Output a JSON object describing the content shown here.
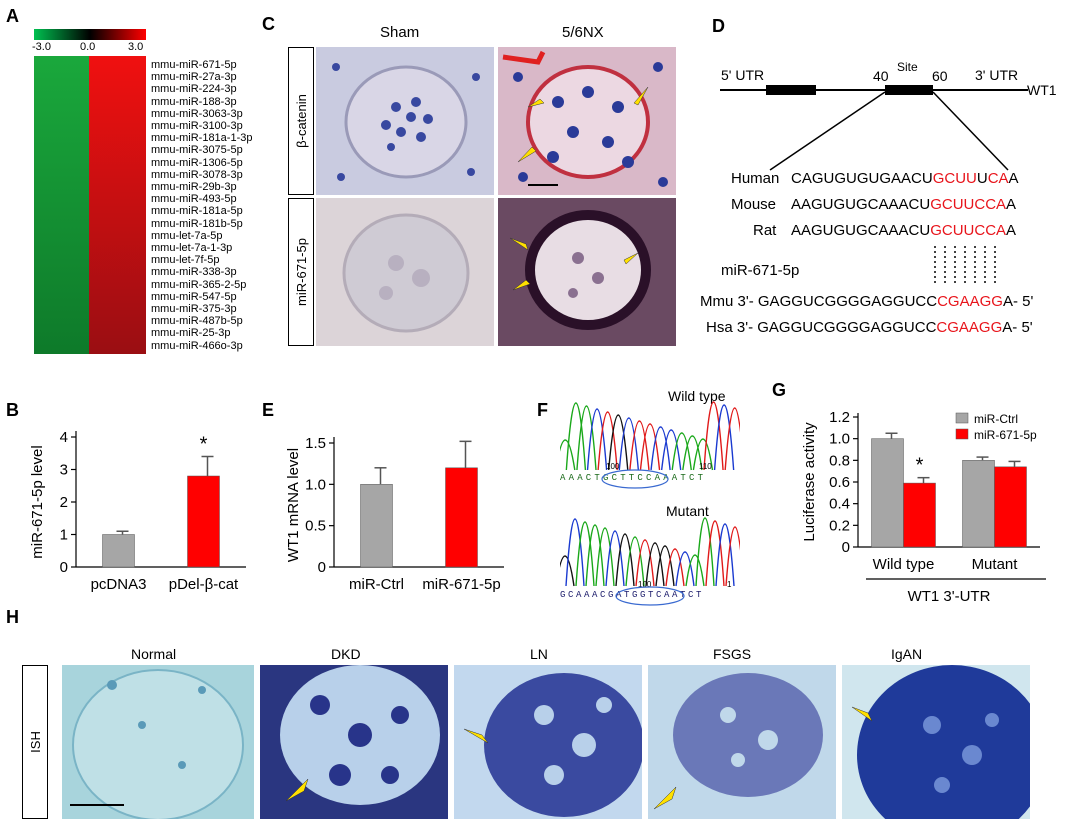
{
  "panels": {
    "A": "A",
    "B": "B",
    "C": "C",
    "D": "D",
    "E": "E",
    "F": "F",
    "G": "G",
    "H": "H"
  },
  "panel_a": {
    "scale_ticks": [
      "-3.0",
      "0.0",
      "3.0"
    ],
    "colors": {
      "low": "#00b050",
      "mid": "#000000",
      "high": "#ff0000"
    },
    "mirnas": [
      "mmu-miR-671-5p",
      "mmu-miR-27a-3p",
      "mmu-miR-224-3p",
      "mmu-miR-188-3p",
      "mmu-miR-3063-3p",
      "mmu-miR-3100-3p",
      "mmu-miR-181a-1-3p",
      "mmu-miR-3075-5p",
      "mmu-miR-1306-5p",
      "mmu-miR-3078-3p",
      "mmu-miR-29b-3p",
      "mmu-miR-493-5p",
      "mmu-miR-181a-5p",
      "mmu-miR-181b-5p",
      "mmu-let-7a-5p",
      "mmu-let-7a-1-3p",
      "mmu-let-7f-5p",
      "mmu-miR-338-3p",
      "mmu-miR-365-2-5p",
      "mmu-miR-547-5p",
      "mmu-miR-375-3p",
      "mmu-miR-487b-5p",
      "mmu-miR-25-3p",
      "mmu-miR-466o-3p"
    ]
  },
  "panel_c": {
    "col_labels": [
      "Sham",
      "5/6NX"
    ],
    "row_labels": [
      "β-catenin",
      "miR-671-5p"
    ]
  },
  "panel_d": {
    "utr5": "5' UTR",
    "utr3": "3' UTR",
    "site": "Site",
    "pos_start": "40",
    "pos_end": "60",
    "gene": "WT1",
    "rows": [
      {
        "species": "Human",
        "seq_a": "CAGUGUGUGAACU",
        "seq_red1": "GCUU",
        "seq_mid": "U",
        "seq_red2": "CA",
        "seq_end": "A"
      },
      {
        "species": "Mouse",
        "seq_a": "AAGUGUGCAAACU",
        "seq_red1": "GCUUCCA",
        "seq_mid": "",
        "seq_red2": "",
        "seq_end": "A"
      },
      {
        "species": "Rat",
        "seq_a": "AAGUGUGCAAACU",
        "seq_red1": "GCUUCCA",
        "seq_mid": "",
        "seq_red2": "",
        "seq_end": "A"
      }
    ],
    "mirna_label": "miR-671-5p",
    "mirna_rows": [
      {
        "species": "Mmu",
        "prefix": "3'-",
        "seq_a": "GAGGUCGGGGAGGUCC",
        "seq_red": "CGAAGG",
        "suffix": "A- 5'"
      },
      {
        "species": "Hsa",
        "prefix": "3'-",
        "seq_a": "GAGGUCGGGGAGGUCC",
        "seq_red": "CGAAGG",
        "suffix": "A- 5'"
      }
    ]
  },
  "panel_f": {
    "wild_label": "Wild type",
    "mutant_label": "Mutant",
    "wild_seq": "AAACTGCTTCCAAATCT",
    "mutant_seq": "GCAAACGATGGTCAATCT",
    "wild_pos": [
      "100",
      "110"
    ],
    "mutant_pos": [
      "100",
      "1"
    ]
  },
  "panel_h": {
    "labels": [
      "Normal",
      "DKD",
      "LN",
      "FSGS",
      "IgAN"
    ],
    "row_label": "ISH"
  },
  "chart_data": [
    {
      "id": "B",
      "type": "bar",
      "categories": [
        "pcDNA3",
        "pDel-β-cat"
      ],
      "values": [
        1.0,
        2.8
      ],
      "errors": [
        0.1,
        0.6
      ],
      "colors": [
        "#a6a6a6",
        "#ff0000"
      ],
      "ylabel": "miR-671-5p level",
      "ylim": [
        0,
        4
      ],
      "yticks": [
        "0",
        "1",
        "2",
        "3",
        "4"
      ],
      "annotations": [
        "*"
      ]
    },
    {
      "id": "E",
      "type": "bar",
      "categories": [
        "miR-Ctrl",
        "miR-671-5p"
      ],
      "values": [
        1.0,
        1.2
      ],
      "errors": [
        0.2,
        0.32
      ],
      "colors": [
        "#a6a6a6",
        "#ff0000"
      ],
      "ylabel": "WT1 mRNA level",
      "ylim": [
        0,
        1.5
      ],
      "yticks": [
        "0",
        "0.5",
        "1.0",
        "1.5"
      ]
    },
    {
      "id": "G",
      "type": "bar",
      "categories": [
        "Wild type",
        "Mutant"
      ],
      "series": [
        {
          "name": "miR-Ctrl",
          "values": [
            1.0,
            0.8
          ],
          "errors": [
            0.05,
            0.03
          ],
          "color": "#a6a6a6"
        },
        {
          "name": "miR-671-5p",
          "values": [
            0.59,
            0.74
          ],
          "errors": [
            0.05,
            0.05
          ],
          "color": "#ff0000"
        }
      ],
      "ylabel": "Luciferase activity",
      "ylim": [
        0,
        1.2
      ],
      "yticks": [
        "0",
        "0.2",
        "0.4",
        "0.6",
        "0.8",
        "1.0",
        "1.2"
      ],
      "xgroup_label": "WT1 3'-UTR",
      "annotations": [
        "*"
      ],
      "legend_position": "top-right"
    }
  ]
}
